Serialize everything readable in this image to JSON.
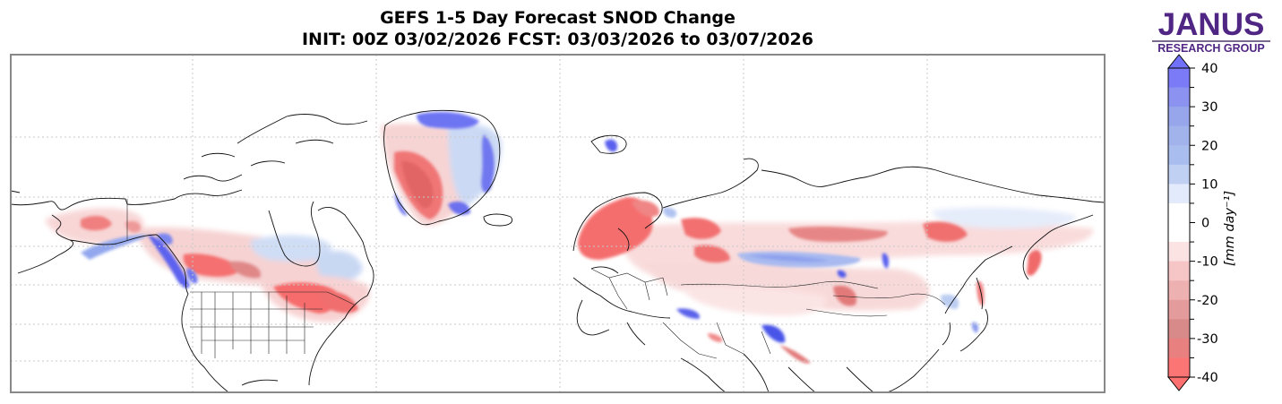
{
  "header": {
    "title_line1": "GEFS 1-5 Day Forecast SNOD Change",
    "title_line2": "INIT: 00Z 03/02/2026    FCST: 03/03/2026 to 03/07/2026"
  },
  "logo": {
    "main": "JANUS",
    "sub": "RESEARCH GROUP",
    "color": "#4f2683"
  },
  "map": {
    "variable": "SNOD Change",
    "projection": "Mercator, Northern Hemisphere (North America, Greenland, Europe, Asia)",
    "gridlines": "dotted",
    "features": [
      "coastlines",
      "country borders",
      "US state borders"
    ],
    "regions": [
      {
        "name": "Alaska interior",
        "sign": "negative"
      },
      {
        "name": "Alaska/British Columbia coast",
        "sign": "positive"
      },
      {
        "name": "Western Canada prairies",
        "sign": "negative"
      },
      {
        "name": "Hudson Bay region",
        "sign": "positive"
      },
      {
        "name": "Ontario/Quebec/US Northeast",
        "sign": "negative"
      },
      {
        "name": "Greenland west/south",
        "sign": "negative"
      },
      {
        "name": "Greenland east/north coast",
        "sign": "positive"
      },
      {
        "name": "Scandinavia",
        "sign": "negative"
      },
      {
        "name": "Western Russia",
        "sign": "negative"
      },
      {
        "name": "Central Siberia band",
        "sign": "positive"
      },
      {
        "name": "Siberia north band",
        "sign": "negative"
      },
      {
        "name": "Caucasus",
        "sign": "positive"
      },
      {
        "name": "Hindu Kush/Karakoram",
        "sign": "positive"
      },
      {
        "name": "Kamchatka",
        "sign": "negative"
      },
      {
        "name": "Svalbard",
        "sign": "positive"
      }
    ]
  },
  "colorbar": {
    "label": "[mm day⁻¹]",
    "ticks": [
      "40",
      "30",
      "20",
      "10",
      "0",
      "-10",
      "-20",
      "-30",
      "-40"
    ],
    "extend": "both",
    "levels": [
      40,
      35,
      30,
      25,
      20,
      15,
      10,
      5,
      0,
      -5,
      -10,
      -15,
      -20,
      -25,
      -30,
      -35,
      -40
    ],
    "colors": [
      "#7b7bf7",
      "#8c92f0",
      "#97a6eb",
      "#a2b3ec",
      "#a9bdef",
      "#bfd0f3",
      "#e2eafb",
      "#ffffff",
      "#ffffff",
      "#fbe3e3",
      "#f6c6c6",
      "#eeb1b1",
      "#e39b9b",
      "#d88a8a",
      "#e98080",
      "#fb7575"
    ],
    "over_color": "#7070f8",
    "under_color": "#ff7070"
  }
}
